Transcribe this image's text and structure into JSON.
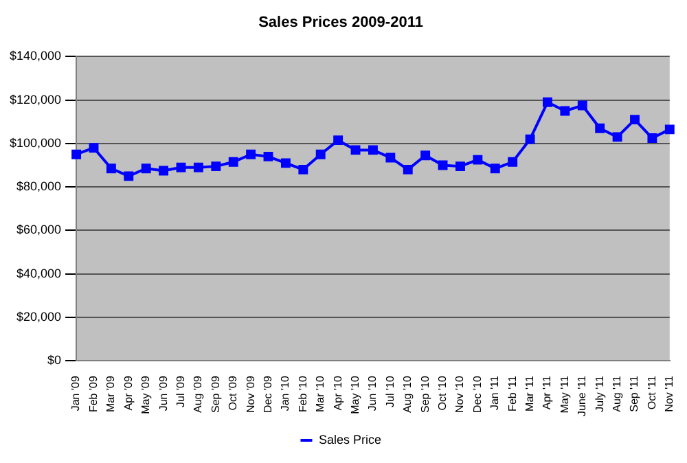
{
  "chart_data": {
    "type": "line",
    "title": "Sales Prices 2009-2011",
    "categories": [
      "Jan '09",
      "Feb '09",
      "Mar '09",
      "Apr '09",
      "May '09",
      "Jun '09",
      "Jul '09",
      "Aug '09",
      "Sep '09",
      "Oct '09",
      "Nov '09",
      "Dec '09",
      "Jan '10",
      "Feb '10",
      "Mar '10",
      "Apr '10",
      "May '10",
      "Jun '10",
      "Jul '10",
      "Aug '10",
      "Sep '10",
      "Oct '10",
      "Nov '10",
      "Dec '10",
      "Jan '11",
      "Feb '11",
      "Mar '11",
      "Apr '11",
      "May '11",
      "June '11",
      "July '11",
      "Aug '11",
      "Sep '11",
      "Oct '11",
      "Nov '11"
    ],
    "series": [
      {
        "name": "Sales Price",
        "color": "#0000ff",
        "values": [
          95000,
          98000,
          88500,
          85000,
          88500,
          87500,
          89000,
          89000,
          89500,
          91500,
          95000,
          94000,
          91000,
          88000,
          95000,
          101500,
          97000,
          97000,
          93500,
          88000,
          94500,
          90000,
          89500,
          92500,
          88500,
          91500,
          102000,
          119000,
          115000,
          117500,
          107000,
          103000,
          111000,
          102500,
          106500
        ]
      }
    ],
    "ylim": [
      0,
      140000
    ],
    "yticks": [
      {
        "value": 0,
        "label": "$0"
      },
      {
        "value": 20000,
        "label": "$20,000"
      },
      {
        "value": 40000,
        "label": "$40,000"
      },
      {
        "value": 60000,
        "label": "$60,000"
      },
      {
        "value": 80000,
        "label": "$80,000"
      },
      {
        "value": 100000,
        "label": "$100,000"
      },
      {
        "value": 120000,
        "label": "$120,000"
      },
      {
        "value": 140000,
        "label": "$140,000"
      }
    ],
    "grid": "y",
    "legend": "bottom",
    "marker": "square",
    "line_style": "solid"
  }
}
